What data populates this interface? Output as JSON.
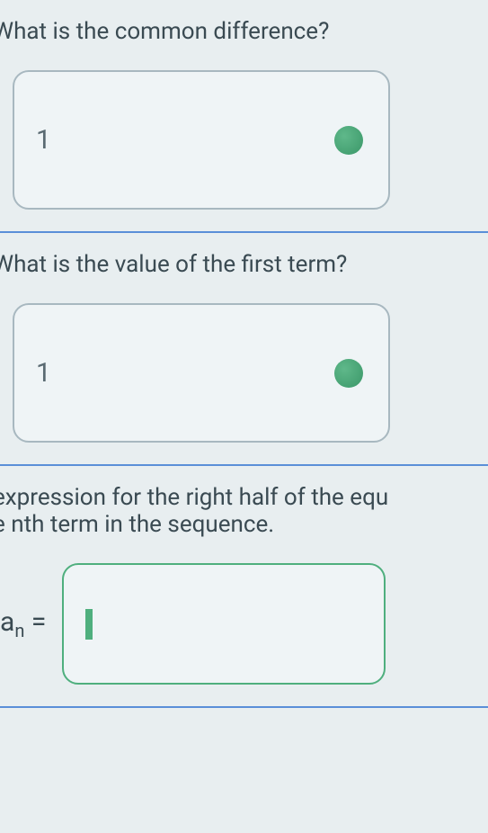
{
  "questions": {
    "q1": {
      "text": "What is the common difference?",
      "value": "1",
      "status": "correct"
    },
    "q2": {
      "text": "What is the value of the first term?",
      "value": "1",
      "status": "correct"
    },
    "q3": {
      "text_line1": "expression for the right half of the equ",
      "text_line2": "e nth term in the sequence.",
      "label_base": "a",
      "label_sub": "n",
      "label_eq": " = ",
      "value": ""
    }
  },
  "colors": {
    "background": "#e8eef0",
    "text": "#3a4a52",
    "border": "#a8b8c0",
    "divider": "#5a8fd8",
    "dot": "#3a9768",
    "active_border": "#4faf7e"
  }
}
